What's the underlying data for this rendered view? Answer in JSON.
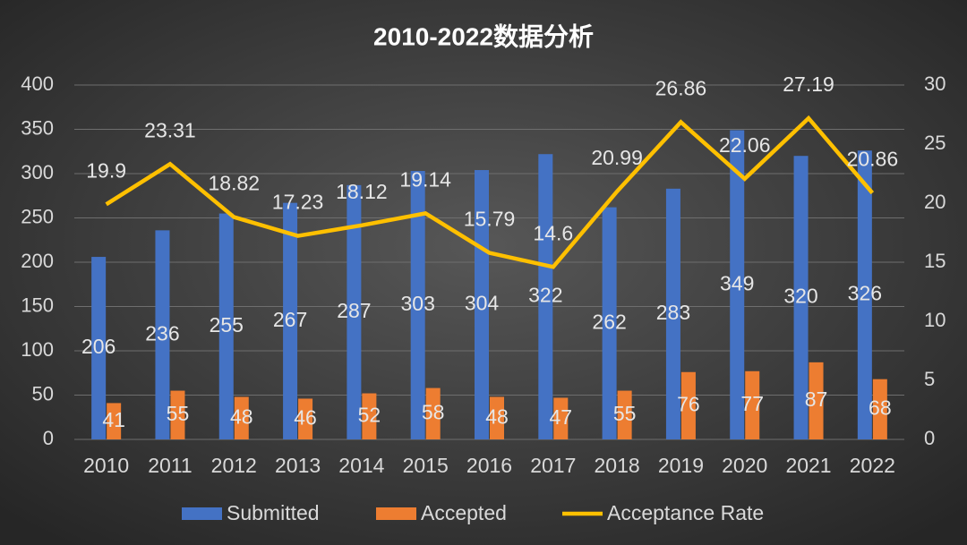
{
  "chart_data": {
    "type": "bar",
    "title": "2010-2022数据分析",
    "categories": [
      "2010",
      "2011",
      "2012",
      "2013",
      "2014",
      "2015",
      "2016",
      "2017",
      "2018",
      "2019",
      "2020",
      "2021",
      "2022"
    ],
    "series": [
      {
        "name": "Submitted",
        "color": "#4472c4",
        "values": [
          206,
          236,
          255,
          267,
          287,
          303,
          304,
          322,
          262,
          283,
          349,
          320,
          326
        ]
      },
      {
        "name": "Accepted",
        "color": "#ed7d31",
        "values": [
          41,
          55,
          48,
          46,
          52,
          58,
          48,
          47,
          55,
          76,
          77,
          87,
          68
        ]
      },
      {
        "name": "Acceptance Rate",
        "color": "#ffc000",
        "type": "line",
        "axis": "y2",
        "values": [
          19.9,
          23.31,
          18.82,
          17.23,
          18.12,
          19.14,
          15.79,
          14.6,
          20.99,
          26.86,
          22.06,
          27.19,
          20.86
        ]
      }
    ],
    "ylim": [
      0,
      400
    ],
    "yticks": [
      0,
      50,
      100,
      150,
      200,
      250,
      300,
      350,
      400
    ],
    "y2lim": [
      0,
      30
    ],
    "y2ticks": [
      0,
      5,
      10,
      15,
      20,
      25,
      30
    ],
    "grid": true,
    "legend": "bottom"
  }
}
